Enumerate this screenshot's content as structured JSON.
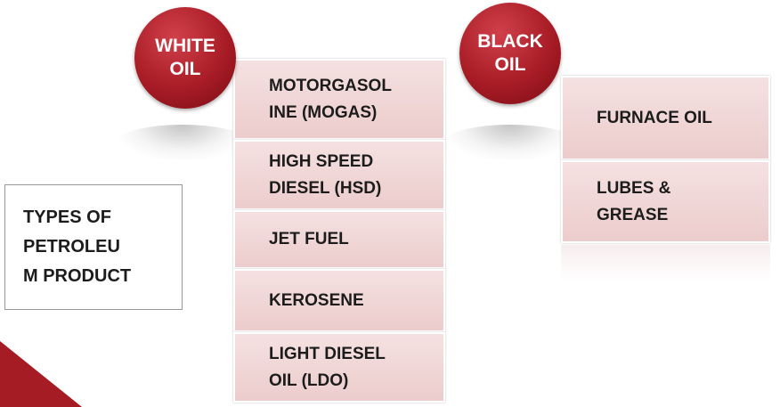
{
  "groups": [
    {
      "title": [
        "WHITE",
        "OIL"
      ],
      "items": [
        [
          "MOTORGASOL",
          "INE (MOGAS)"
        ],
        [
          "HIGH SPEED",
          "DIESEL (HSD)"
        ],
        [
          "JET FUEL"
        ],
        [
          "KEROSENE"
        ],
        [
          "LIGHT DIESEL",
          "OIL (LDO)"
        ]
      ]
    },
    {
      "title": [
        "BLACK",
        "OIL"
      ],
      "items": [
        [
          "FURNACE OIL"
        ],
        [
          "LUBES &",
          "GREASE"
        ]
      ]
    }
  ],
  "types": [
    "TYPES OF",
    "PETROLEU",
    "M PRODUCT"
  ]
}
